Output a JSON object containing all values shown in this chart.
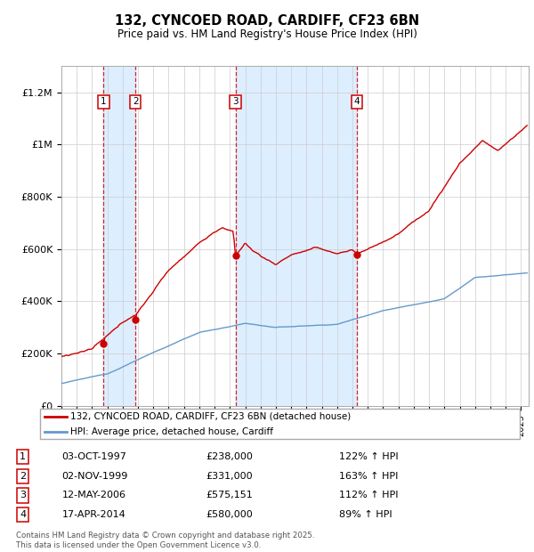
{
  "title": "132, CYNCOED ROAD, CARDIFF, CF23 6BN",
  "subtitle": "Price paid vs. HM Land Registry's House Price Index (HPI)",
  "sale_dates_num": [
    1997.75,
    1999.83,
    2006.36,
    2014.29
  ],
  "sale_prices": [
    238000,
    331000,
    575151,
    580000
  ],
  "sale_labels": [
    "1",
    "2",
    "3",
    "4"
  ],
  "legend_texts": [
    "132, CYNCOED ROAD, CARDIFF, CF23 6BN (detached house)",
    "HPI: Average price, detached house, Cardiff"
  ],
  "table_rows": [
    [
      "1",
      "03-OCT-1997",
      "£238,000",
      "122% ↑ HPI"
    ],
    [
      "2",
      "02-NOV-1999",
      "£331,000",
      "163% ↑ HPI"
    ],
    [
      "3",
      "12-MAY-2006",
      "£575,151",
      "112% ↑ HPI"
    ],
    [
      "4",
      "17-APR-2014",
      "£580,000",
      "89% ↑ HPI"
    ]
  ],
  "footnote": "Contains HM Land Registry data © Crown copyright and database right 2025.\nThis data is licensed under the Open Government Licence v3.0.",
  "red_color": "#cc0000",
  "blue_color": "#6699cc",
  "shade_color": "#ddeeff",
  "ylim_max": 1300000,
  "xlim_start": 1995.0,
  "xlim_end": 2025.5,
  "yticks": [
    0,
    200000,
    400000,
    600000,
    800000,
    1000000,
    1200000
  ],
  "ylabels": [
    "£0",
    "£200K",
    "£400K",
    "£600K",
    "£800K",
    "£1M",
    "£1.2M"
  ]
}
